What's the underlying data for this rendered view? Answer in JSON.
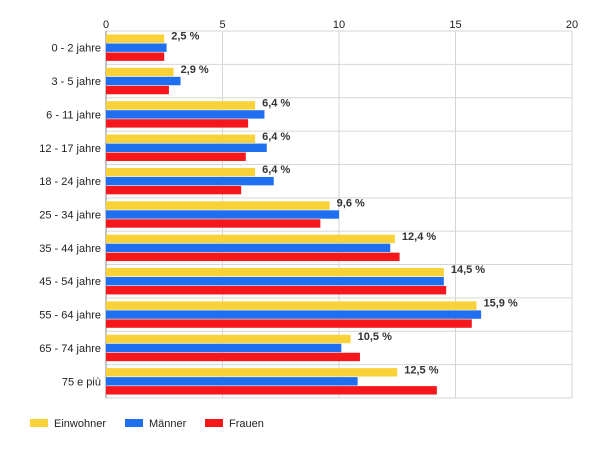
{
  "chart_data": {
    "type": "bar",
    "orientation": "horizontal",
    "categories": [
      "0 - 2 jahre",
      "3 - 5 jahre",
      "6 - 11 jahre",
      "12 - 17 jahre",
      "18 - 24 jahre",
      "25 - 34 jahre",
      "35 - 44 jahre",
      "45 - 54 jahre",
      "55 - 64 jahre",
      "65 - 74 jahre",
      "75 e più"
    ],
    "series": [
      {
        "name": "Einwohner",
        "color": "#f9d23a",
        "values": [
          2.5,
          2.9,
          6.4,
          6.4,
          6.4,
          9.6,
          12.4,
          14.5,
          15.9,
          10.5,
          12.5
        ]
      },
      {
        "name": "Männer",
        "color": "#1f6ff0",
        "values": [
          2.6,
          3.2,
          6.8,
          6.9,
          7.2,
          10.0,
          12.2,
          14.5,
          16.1,
          10.1,
          10.8
        ]
      },
      {
        "name": "Frauen",
        "color": "#f5171c",
        "values": [
          2.5,
          2.7,
          6.1,
          6.0,
          5.8,
          9.2,
          12.6,
          14.6,
          15.7,
          10.9,
          14.2
        ]
      }
    ],
    "data_labels": [
      "2,5 %",
      "2,9 %",
      "6,4 %",
      "6,4 %",
      "6,4 %",
      "9,6 %",
      "12,4 %",
      "14,5 %",
      "15,9 %",
      "10,5 %",
      "12,5 %"
    ],
    "x_ticks": [
      0,
      5,
      10,
      15,
      20
    ],
    "xlim": [
      0,
      20
    ],
    "x_axis_position": "top",
    "grid": true,
    "legend_position": "bottom-left"
  }
}
